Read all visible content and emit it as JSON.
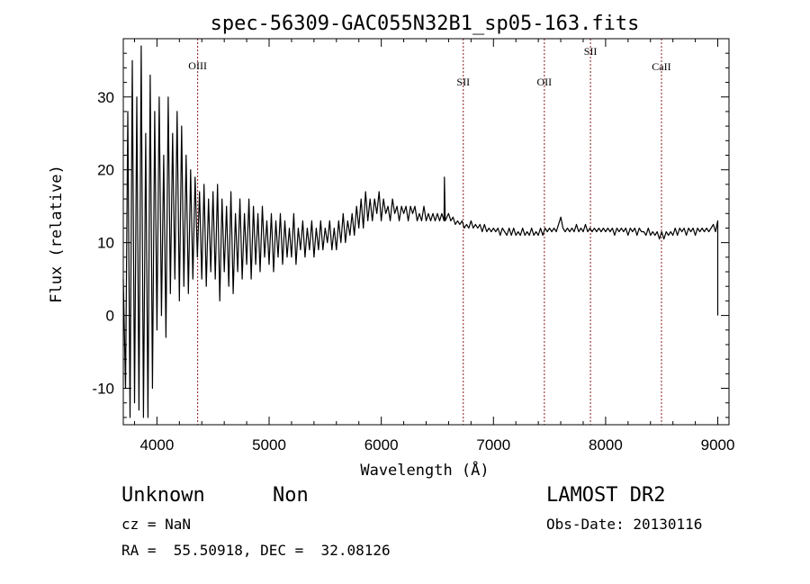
{
  "chart_data": {
    "type": "line",
    "title": "spec-56309-GAC055N32B1_sp05-163.fits",
    "xlabel": "Wavelength (Å)",
    "ylabel": "Flux (relative)",
    "xlim": [
      3700,
      9100
    ],
    "ylim": [
      -15,
      38
    ],
    "x_ticks": [
      4000,
      5000,
      6000,
      7000,
      8000,
      9000
    ],
    "y_ticks": [
      -10,
      0,
      10,
      20,
      30
    ],
    "grid": false,
    "line_color": "#000000",
    "marker_color": "#8b1a1a",
    "line_markers": [
      {
        "label": "OIII",
        "x": 4363
      },
      {
        "label": "SII",
        "x": 6731
      },
      {
        "label": "OII",
        "x": 7454
      },
      {
        "label": "SII",
        "x": 7865
      },
      {
        "label": "CaII",
        "x": 8498
      }
    ],
    "series": [
      {
        "values": [
          [
            3700,
            5
          ],
          [
            3720,
            -10
          ],
          [
            3740,
            28
          ],
          [
            3760,
            -14
          ],
          [
            3780,
            35
          ],
          [
            3800,
            -12
          ],
          [
            3820,
            30
          ],
          [
            3840,
            -13
          ],
          [
            3860,
            37
          ],
          [
            3880,
            -14
          ],
          [
            3900,
            25
          ],
          [
            3920,
            -14
          ],
          [
            3940,
            33
          ],
          [
            3960,
            -10
          ],
          [
            3980,
            28
          ],
          [
            4000,
            -2
          ],
          [
            4020,
            30
          ],
          [
            4040,
            0
          ],
          [
            4060,
            22
          ],
          [
            4080,
            -3
          ],
          [
            4100,
            30
          ],
          [
            4120,
            3
          ],
          [
            4140,
            25
          ],
          [
            4160,
            5
          ],
          [
            4180,
            28
          ],
          [
            4200,
            2
          ],
          [
            4220,
            26
          ],
          [
            4240,
            4
          ],
          [
            4260,
            22
          ],
          [
            4280,
            3
          ],
          [
            4300,
            20
          ],
          [
            4320,
            5
          ],
          [
            4340,
            19
          ],
          [
            4360,
            8
          ],
          [
            4380,
            17
          ],
          [
            4400,
            5
          ],
          [
            4420,
            18
          ],
          [
            4440,
            4
          ],
          [
            4460,
            16
          ],
          [
            4480,
            6
          ],
          [
            4500,
            17
          ],
          [
            4520,
            5
          ],
          [
            4540,
            18
          ],
          [
            4560,
            2
          ],
          [
            4580,
            16
          ],
          [
            4600,
            6
          ],
          [
            4620,
            15
          ],
          [
            4640,
            4
          ],
          [
            4660,
            17
          ],
          [
            4680,
            3
          ],
          [
            4700,
            14
          ],
          [
            4720,
            6
          ],
          [
            4740,
            16
          ],
          [
            4760,
            5
          ],
          [
            4780,
            14
          ],
          [
            4800,
            7
          ],
          [
            4820,
            16
          ],
          [
            4840,
            5
          ],
          [
            4860,
            15
          ],
          [
            4880,
            7
          ],
          [
            4900,
            14
          ],
          [
            4920,
            6
          ],
          [
            4940,
            15
          ],
          [
            4960,
            8
          ],
          [
            4980,
            13
          ],
          [
            5000,
            7
          ],
          [
            5020,
            14
          ],
          [
            5040,
            6
          ],
          [
            5060,
            13
          ],
          [
            5080,
            8
          ],
          [
            5100,
            14
          ],
          [
            5120,
            7
          ],
          [
            5140,
            13
          ],
          [
            5160,
            8
          ],
          [
            5180,
            12
          ],
          [
            5200,
            8
          ],
          [
            5220,
            14
          ],
          [
            5240,
            7
          ],
          [
            5260,
            12
          ],
          [
            5280,
            9
          ],
          [
            5300,
            13
          ],
          [
            5320,
            8
          ],
          [
            5340,
            12
          ],
          [
            5360,
            9
          ],
          [
            5380,
            13
          ],
          [
            5400,
            8
          ],
          [
            5420,
            12
          ],
          [
            5440,
            9
          ],
          [
            5460,
            13
          ],
          [
            5480,
            9
          ],
          [
            5500,
            12
          ],
          [
            5520,
            10
          ],
          [
            5540,
            13
          ],
          [
            5560,
            9
          ],
          [
            5580,
            12
          ],
          [
            5600,
            9
          ],
          [
            5620,
            13
          ],
          [
            5640,
            10
          ],
          [
            5660,
            14
          ],
          [
            5680,
            10
          ],
          [
            5700,
            13
          ],
          [
            5720,
            11
          ],
          [
            5740,
            14
          ],
          [
            5760,
            11
          ],
          [
            5780,
            15
          ],
          [
            5800,
            12
          ],
          [
            5820,
            16
          ],
          [
            5840,
            12
          ],
          [
            5860,
            17
          ],
          [
            5880,
            13
          ],
          [
            5900,
            16
          ],
          [
            5920,
            13
          ],
          [
            5940,
            16
          ],
          [
            5960,
            14
          ],
          [
            5980,
            17
          ],
          [
            6000,
            13
          ],
          [
            6020,
            16
          ],
          [
            6040,
            14
          ],
          [
            6060,
            15
          ],
          [
            6080,
            13
          ],
          [
            6100,
            16
          ],
          [
            6120,
            14
          ],
          [
            6140,
            15
          ],
          [
            6160,
            13
          ],
          [
            6180,
            15
          ],
          [
            6200,
            14
          ],
          [
            6220,
            15
          ],
          [
            6240,
            13
          ],
          [
            6260,
            15
          ],
          [
            6280,
            14
          ],
          [
            6300,
            15
          ],
          [
            6320,
            13
          ],
          [
            6340,
            14
          ],
          [
            6360,
            13
          ],
          [
            6380,
            15
          ],
          [
            6400,
            13
          ],
          [
            6420,
            14
          ],
          [
            6440,
            13
          ],
          [
            6460,
            14
          ],
          [
            6480,
            13
          ],
          [
            6500,
            14
          ],
          [
            6520,
            13
          ],
          [
            6540,
            14
          ],
          [
            6560,
            13
          ],
          [
            6563,
            19
          ],
          [
            6570,
            13
          ],
          [
            6600,
            14
          ],
          [
            6620,
            13
          ],
          [
            6640,
            13.5
          ],
          [
            6660,
            12.5
          ],
          [
            6680,
            13
          ],
          [
            6700,
            12.5
          ],
          [
            6720,
            13
          ],
          [
            6740,
            12
          ],
          [
            6760,
            12.5
          ],
          [
            6780,
            12
          ],
          [
            6800,
            13
          ],
          [
            6820,
            12
          ],
          [
            6840,
            12.5
          ],
          [
            6860,
            12
          ],
          [
            6880,
            12.5
          ],
          [
            6900,
            11.5
          ],
          [
            6920,
            12.5
          ],
          [
            6940,
            11.5
          ],
          [
            6960,
            12
          ],
          [
            6980,
            11.5
          ],
          [
            7000,
            12
          ],
          [
            7020,
            11.5
          ],
          [
            7040,
            12
          ],
          [
            7060,
            11
          ],
          [
            7080,
            12
          ],
          [
            7100,
            11.5
          ],
          [
            7120,
            11
          ],
          [
            7140,
            12
          ],
          [
            7160,
            11
          ],
          [
            7180,
            12
          ],
          [
            7200,
            11
          ],
          [
            7220,
            11.5
          ],
          [
            7240,
            11
          ],
          [
            7260,
            12
          ],
          [
            7280,
            11
          ],
          [
            7300,
            11.5
          ],
          [
            7320,
            11
          ],
          [
            7340,
            12
          ],
          [
            7360,
            11
          ],
          [
            7380,
            11.5
          ],
          [
            7400,
            11
          ],
          [
            7420,
            12
          ],
          [
            7440,
            11
          ],
          [
            7460,
            12
          ],
          [
            7480,
            11.5
          ],
          [
            7500,
            12
          ],
          [
            7520,
            11.5
          ],
          [
            7540,
            12
          ],
          [
            7560,
            11.5
          ],
          [
            7580,
            12.5
          ],
          [
            7600,
            13.5
          ],
          [
            7620,
            12
          ],
          [
            7640,
            11.5
          ],
          [
            7660,
            12
          ],
          [
            7680,
            11.5
          ],
          [
            7700,
            12
          ],
          [
            7720,
            11.5
          ],
          [
            7740,
            12.5
          ],
          [
            7760,
            11.5
          ],
          [
            7780,
            12
          ],
          [
            7800,
            11.5
          ],
          [
            7820,
            12.5
          ],
          [
            7840,
            11.5
          ],
          [
            7860,
            12
          ],
          [
            7880,
            11.5
          ],
          [
            7900,
            12
          ],
          [
            7920,
            11.5
          ],
          [
            7940,
            12
          ],
          [
            7960,
            11.5
          ],
          [
            7980,
            12
          ],
          [
            8000,
            11.5
          ],
          [
            8020,
            12
          ],
          [
            8040,
            11.5
          ],
          [
            8060,
            12
          ],
          [
            8080,
            11
          ],
          [
            8100,
            12
          ],
          [
            8120,
            11.5
          ],
          [
            8140,
            12
          ],
          [
            8160,
            11.5
          ],
          [
            8180,
            12
          ],
          [
            8200,
            11
          ],
          [
            8220,
            12
          ],
          [
            8240,
            11.5
          ],
          [
            8260,
            12
          ],
          [
            8280,
            11
          ],
          [
            8300,
            12
          ],
          [
            8320,
            11.5
          ],
          [
            8340,
            11.5
          ],
          [
            8360,
            11
          ],
          [
            8380,
            12
          ],
          [
            8400,
            11
          ],
          [
            8420,
            11.5
          ],
          [
            8440,
            11
          ],
          [
            8460,
            11.5
          ],
          [
            8480,
            10.5
          ],
          [
            8500,
            11.5
          ],
          [
            8520,
            10.5
          ],
          [
            8540,
            11.5
          ],
          [
            8560,
            11
          ],
          [
            8580,
            11.5
          ],
          [
            8600,
            11
          ],
          [
            8620,
            12
          ],
          [
            8640,
            11
          ],
          [
            8660,
            12
          ],
          [
            8680,
            11.5
          ],
          [
            8700,
            12
          ],
          [
            8720,
            11
          ],
          [
            8740,
            12
          ],
          [
            8760,
            11.5
          ],
          [
            8780,
            12
          ],
          [
            8800,
            11
          ],
          [
            8820,
            12
          ],
          [
            8840,
            11.5
          ],
          [
            8860,
            12
          ],
          [
            8880,
            11.5
          ],
          [
            8900,
            12
          ],
          [
            8920,
            11.5
          ],
          [
            8940,
            12
          ],
          [
            8960,
            12.5
          ],
          [
            8980,
            11.5
          ],
          [
            9000,
            13
          ],
          [
            9000,
            0
          ]
        ]
      }
    ]
  },
  "info": {
    "object_class": "Unknown",
    "object_subclass": "Non",
    "redshift": "cz = NaN",
    "coordinates": "RA =  55.50918, DEC =  32.08126",
    "survey": "LAMOST DR2",
    "obs_date": "Obs-Date: 20130116"
  }
}
